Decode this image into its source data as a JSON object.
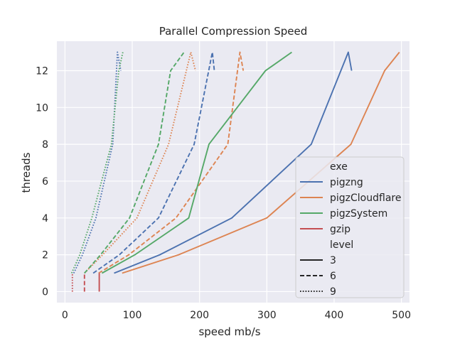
{
  "chart_data": {
    "type": "line",
    "title": "Parallel Compression Speed",
    "xlabel": "speed mb/s",
    "ylabel": "threads",
    "xlim": [
      -12,
      512
    ],
    "ylim": [
      -0.6,
      13.6
    ],
    "xticks": [
      "0",
      "100",
      "200",
      "300",
      "400",
      "500"
    ],
    "xtick_values": [
      0,
      100,
      200,
      300,
      400,
      500
    ],
    "yticks": [
      "0",
      "2",
      "4",
      "6",
      "8",
      "10",
      "12"
    ],
    "ytick_values": [
      0,
      2,
      4,
      6,
      8,
      10,
      12
    ],
    "grid": true,
    "background": "#eaeaf2",
    "legend": {
      "placement": "lower-right",
      "hue_title": "exe",
      "style_title": "level",
      "hue_entries": [
        {
          "label": "pigzng",
          "color": "#4c72b0"
        },
        {
          "label": "pigzCloudflare",
          "color": "#dd8452"
        },
        {
          "label": "pigzSystem",
          "color": "#55a868"
        },
        {
          "label": "gzip",
          "color": "#c44e52"
        }
      ],
      "style_entries": [
        {
          "label": "3",
          "dash": "solid"
        },
        {
          "label": "6",
          "dash": "dashed"
        },
        {
          "label": "9",
          "dash": "dotted"
        }
      ]
    },
    "series": [
      {
        "name": "pigzng",
        "level": "3",
        "color": "#4c72b0",
        "dash": "solid",
        "points": [
          [
            73,
            1
          ],
          [
            141,
            2
          ],
          [
            248,
            4
          ],
          [
            366,
            8
          ],
          [
            421,
            13
          ],
          [
            426,
            12
          ]
        ]
      },
      {
        "name": "pigzng",
        "level": "6",
        "color": "#4c72b0",
        "dash": "dashed",
        "points": [
          [
            42,
            1
          ],
          [
            81,
            2
          ],
          [
            139,
            4
          ],
          [
            192,
            8
          ],
          [
            219,
            13
          ],
          [
            222,
            12
          ]
        ]
      },
      {
        "name": "pigzng",
        "level": "9",
        "color": "#4c72b0",
        "dash": "dotted",
        "points": [
          [
            13,
            1
          ],
          [
            26,
            2
          ],
          [
            46,
            4
          ],
          [
            71,
            8
          ],
          [
            78,
            13
          ],
          [
            83,
            12
          ]
        ]
      },
      {
        "name": "pigzCloudflare",
        "level": "3",
        "color": "#dd8452",
        "dash": "solid",
        "points": [
          [
            85,
            1
          ],
          [
            169,
            2
          ],
          [
            300,
            4
          ],
          [
            425,
            8
          ],
          [
            475,
            12
          ],
          [
            497,
            13
          ]
        ]
      },
      {
        "name": "pigzCloudflare",
        "level": "6",
        "color": "#dd8452",
        "dash": "dashed",
        "points": [
          [
            50,
            1
          ],
          [
            95,
            2
          ],
          [
            165,
            4
          ],
          [
            242,
            8
          ],
          [
            260,
            13
          ],
          [
            265,
            12
          ]
        ]
      },
      {
        "name": "pigzCloudflare",
        "level": "9",
        "color": "#dd8452",
        "dash": "dotted",
        "points": [
          [
            29,
            1
          ],
          [
            56,
            2
          ],
          [
            107,
            4
          ],
          [
            154,
            8
          ],
          [
            187,
            13
          ],
          [
            194,
            12
          ]
        ]
      },
      {
        "name": "pigzSystem",
        "level": "3",
        "color": "#55a868",
        "dash": "solid",
        "points": [
          [
            55,
            1
          ],
          [
            104,
            2
          ],
          [
            184,
            4
          ],
          [
            214,
            8
          ],
          [
            298,
            12
          ],
          [
            337,
            13
          ]
        ]
      },
      {
        "name": "pigzSystem",
        "level": "6",
        "color": "#55a868",
        "dash": "dashed",
        "points": [
          [
            29,
            1
          ],
          [
            53,
            2
          ],
          [
            96,
            4
          ],
          [
            139,
            8
          ],
          [
            157,
            12
          ],
          [
            177,
            13
          ]
        ]
      },
      {
        "name": "pigzSystem",
        "level": "9",
        "color": "#55a868",
        "dash": "dotted",
        "points": [
          [
            10,
            1
          ],
          [
            22,
            2
          ],
          [
            40,
            4
          ],
          [
            69,
            8
          ],
          [
            80,
            12
          ],
          [
            86,
            13
          ]
        ]
      },
      {
        "name": "gzip",
        "level": "3",
        "color": "#c44e52",
        "dash": "solid",
        "points": [
          [
            51,
            0
          ],
          [
            51,
            1
          ]
        ]
      },
      {
        "name": "gzip",
        "level": "6",
        "color": "#c44e52",
        "dash": "dashed",
        "points": [
          [
            29,
            0
          ],
          [
            29,
            1
          ]
        ]
      },
      {
        "name": "gzip",
        "level": "9",
        "color": "#c44e52",
        "dash": "dotted",
        "points": [
          [
            11,
            0
          ],
          [
            11,
            1
          ]
        ]
      }
    ]
  }
}
